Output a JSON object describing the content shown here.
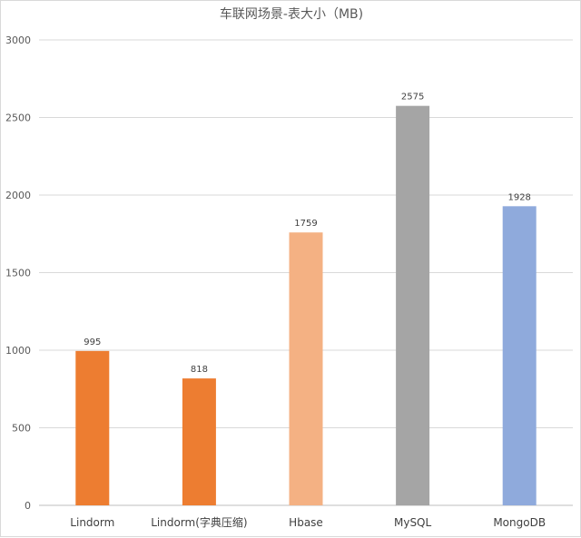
{
  "chart_data": {
    "type": "bar",
    "title": "车联网场景-表大小（MB)",
    "categories": [
      "Lindorm",
      "Lindorm(字典压缩)",
      "Hbase",
      "MySQL",
      "MongoDB"
    ],
    "values": [
      995,
      818,
      1759,
      2575,
      1928
    ],
    "colors": [
      "#ed7d31",
      "#ed7d31",
      "#f4b183",
      "#a5a5a5",
      "#8faadc"
    ],
    "data_labels": [
      "995",
      "818",
      "1759",
      "2575",
      "1928"
    ],
    "ylim": [
      0,
      3000
    ],
    "yticks": [
      0,
      500,
      1000,
      1500,
      2000,
      2500,
      3000
    ],
    "grid": true,
    "legend": "none"
  }
}
